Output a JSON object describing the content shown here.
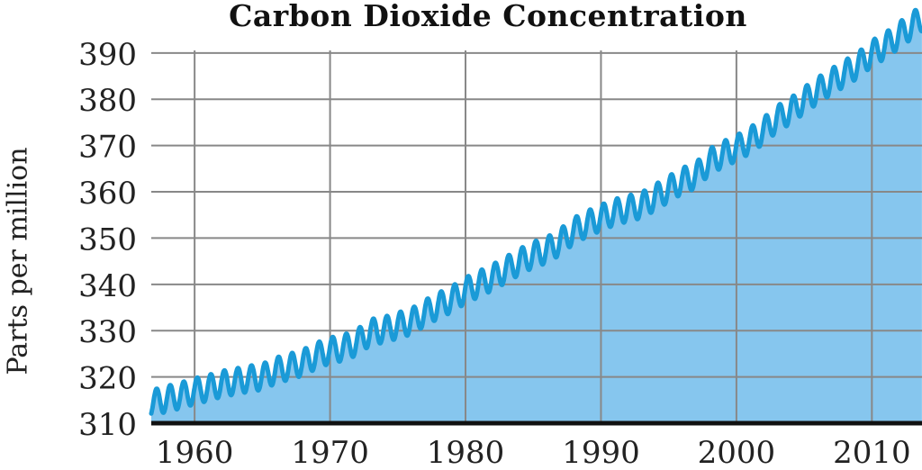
{
  "chart_data": {
    "type": "area",
    "title": "Carbon Dioxide Concentration",
    "xlabel": "",
    "ylabel": "Parts per million",
    "xlim": [
      1956.8,
      2013.7
    ],
    "ylim": [
      310,
      396
    ],
    "x_ticks": [
      1960,
      1970,
      1980,
      1990,
      2000,
      2010
    ],
    "y_ticks": [
      310,
      320,
      330,
      340,
      350,
      360,
      370,
      380,
      390
    ],
    "grid": true,
    "legend": "none",
    "seasonal_amplitude_ppm": 2.8,
    "series": [
      {
        "x": [
          1957,
          1958,
          1959,
          1960,
          1961,
          1962,
          1963,
          1964,
          1965,
          1966,
          1967,
          1968,
          1969,
          1970,
          1971,
          1972,
          1973,
          1974,
          1975,
          1976,
          1977,
          1978,
          1979,
          1980,
          1981,
          1982,
          1983,
          1984,
          1985,
          1986,
          1987,
          1988,
          1989,
          1990,
          1991,
          1992,
          1993,
          1994,
          1995,
          1996,
          1997,
          1998,
          1999,
          2000,
          2001,
          2002,
          2003,
          2004,
          2005,
          2006,
          2007,
          2008,
          2009,
          2010,
          2011,
          2012,
          2013
        ],
        "values": [
          314.5,
          315.3,
          316.0,
          316.9,
          317.6,
          318.5,
          319.0,
          319.6,
          320.0,
          321.4,
          322.2,
          323.1,
          324.6,
          325.7,
          326.3,
          327.5,
          329.7,
          330.2,
          331.1,
          332.0,
          333.8,
          335.4,
          336.8,
          338.7,
          340.1,
          341.5,
          343.2,
          344.9,
          346.4,
          347.4,
          349.2,
          351.6,
          353.1,
          354.4,
          355.6,
          356.4,
          357.1,
          358.8,
          360.6,
          362.4,
          363.5,
          366.5,
          368.1,
          369.4,
          371.1,
          373.2,
          375.8,
          377.5,
          379.8,
          381.9,
          383.8,
          385.6,
          387.4,
          389.9,
          391.6,
          393.8,
          396.0
        ]
      }
    ],
    "colors": {
      "line": "#1a9ad7",
      "fill": "#86c6ee",
      "grid": "#888888",
      "axis": "#111111",
      "text": "#222222"
    }
  }
}
